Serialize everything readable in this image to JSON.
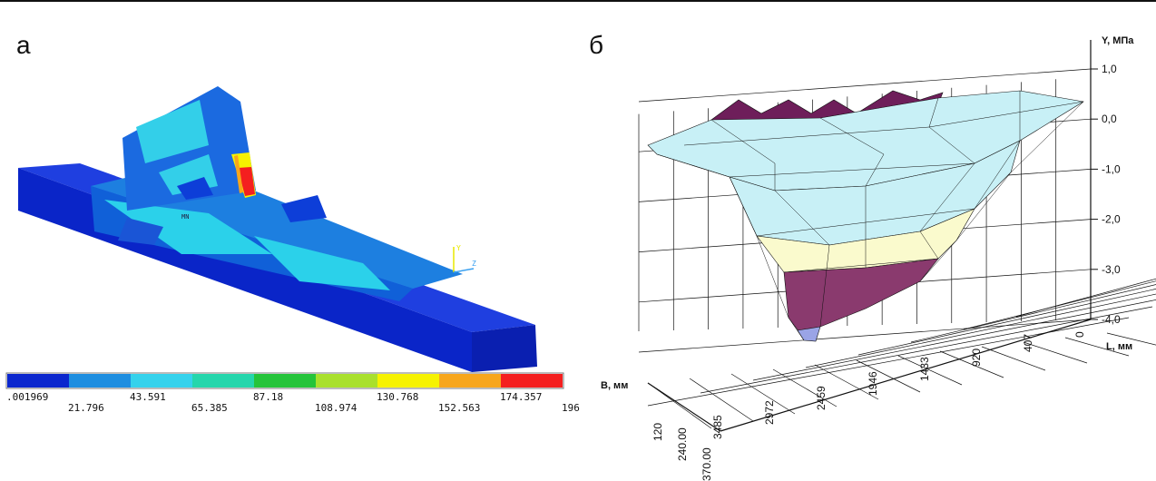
{
  "panel_a": {
    "label": "а",
    "model_tag": "MN",
    "axis_y": "Y",
    "axis_z": "Z",
    "legend": {
      "colors": [
        "#0b27ce",
        "#1e8ee0",
        "#35d2ec",
        "#25d6ac",
        "#25c43a",
        "#a9e02c",
        "#f6f200",
        "#f7a61c",
        "#f41f1f"
      ],
      "labels_top": [
        ".001969",
        "43.591",
        "87.18",
        "130.768",
        "174.357"
      ],
      "labels_bottom": [
        "21.796",
        "65.385",
        "108.974",
        "152.563",
        "196."
      ]
    }
  },
  "panel_b": {
    "label": "б",
    "y_axis_title": "Y, МПа",
    "y_ticks": [
      "1,0",
      "0,0",
      "-1,0",
      "-2,0",
      "-3,0",
      "-4,0"
    ],
    "l_axis_title": "L, мм",
    "l_ticks": [
      "0",
      "407",
      "920",
      "1433",
      "1946",
      "2459",
      "2972",
      "3485"
    ],
    "b_axis_title": "B, мм",
    "b_ticks": [
      "120",
      "240.00",
      "370.00"
    ],
    "colors": {
      "band_top": "#6e1e5a",
      "band_light": "#c8f0f6",
      "band_yellow": "#fafacd",
      "band_purple": "#8a3a6e",
      "tip": "#9aa4e6"
    }
  },
  "chart_data": {
    "type": "surface",
    "title": "",
    "xlabel": "L, мм",
    "ylabel": "Y, МПа",
    "zlabel": "B, мм",
    "x": [
      0,
      407,
      920,
      1433,
      1946,
      2459,
      2972,
      3485
    ],
    "z": [
      120,
      240,
      370
    ],
    "ylim": [
      -4.0,
      1.0
    ],
    "grid": true,
    "values_note_min": -4.0
  }
}
